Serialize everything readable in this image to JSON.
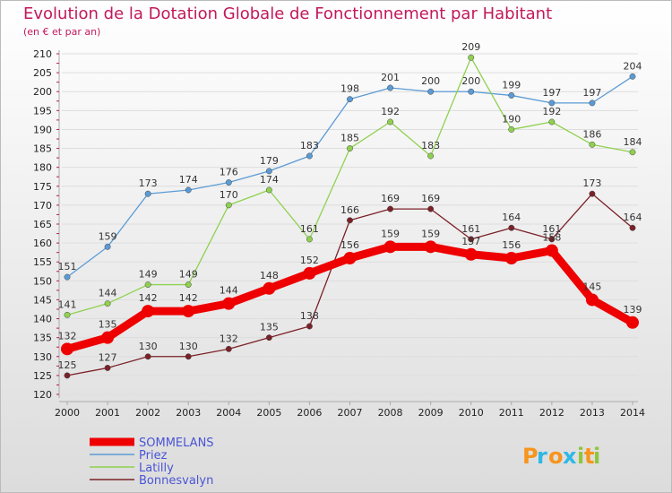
{
  "chart_data": {
    "type": "line",
    "title": "Evolution de la Dotation Globale de Fonctionnement par Habitant",
    "subtitle": "(en € et par an)",
    "categories": [
      "2000",
      "2001",
      "2002",
      "2003",
      "2004",
      "2005",
      "2006",
      "2007",
      "2008",
      "2009",
      "2010",
      "2011",
      "2012",
      "2013",
      "2014"
    ],
    "ylim": [
      120,
      210
    ],
    "yticks": [
      120,
      125,
      130,
      135,
      140,
      145,
      150,
      155,
      160,
      165,
      170,
      175,
      180,
      185,
      190,
      195,
      200,
      205,
      210
    ],
    "grid": "horizontal",
    "legend_position": "bottom-left",
    "series": [
      {
        "name": "Priez",
        "color": "#5b9bd5",
        "values": [
          151,
          159,
          173,
          174,
          176,
          179,
          183,
          198,
          201,
          200,
          200,
          199,
          197,
          197,
          204
        ]
      },
      {
        "name": "Latilly",
        "color": "#8fd14f",
        "values": [
          141,
          144,
          149,
          149,
          170,
          174,
          161,
          185,
          192,
          183,
          209,
          190,
          192,
          186,
          184
        ]
      },
      {
        "name": "Bonnesvalyn",
        "color": "#7b2128",
        "values": [
          125,
          127,
          130,
          130,
          132,
          135,
          138,
          166,
          169,
          169,
          161,
          164,
          161,
          173,
          164
        ]
      },
      {
        "name": "SOMMELANS",
        "color": "#ee0000",
        "values": [
          132,
          135,
          142,
          142,
          144,
          148,
          152,
          156,
          159,
          159,
          157,
          156,
          158,
          145,
          139
        ]
      }
    ],
    "legend_order": [
      "SOMMELANS",
      "Priez",
      "Latilly",
      "Bonnesvalyn"
    ]
  },
  "brand": {
    "letters": [
      "P",
      "r",
      "o",
      "x",
      "i",
      "t",
      "i"
    ],
    "colors": [
      "#f7941d",
      "#2eb8e6",
      "#f7941d",
      "#2eb8e6",
      "#8dc63f",
      "#f7941d",
      "#8dc63f"
    ]
  }
}
